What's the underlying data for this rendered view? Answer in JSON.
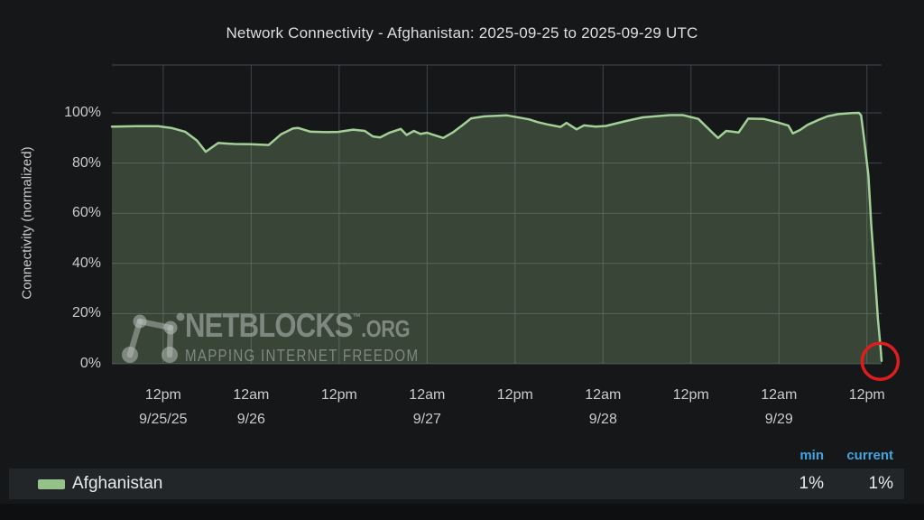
{
  "header": {
    "title": "Network Connectivity - Afghanistan: 2025-09-25 to 2025-09-29 UTC"
  },
  "watermark": {
    "brand": "NETBLOCKS",
    "tm": "™",
    "suffix": ".ORG",
    "tagline": "MAPPING INTERNET FREEDOM"
  },
  "legend": {
    "columns": {
      "min": "min",
      "current": "current"
    },
    "rows": [
      {
        "series": "Afghanistan",
        "swatch_color": "#94c289",
        "min": "1%",
        "current": "1%"
      }
    ]
  },
  "colors": {
    "background": "#151719",
    "grid": "#41464a",
    "title_text": "#dcdee1",
    "tick_text": "#c9ccce",
    "legend_header": "#42a5e0",
    "line": "#a2d096",
    "fill": "rgba(148,190,134,0.28)",
    "annotation": "#e01d1d",
    "watermark": "rgba(198,204,199,0.5)"
  },
  "chart_data": {
    "type": "area",
    "title": "Network Connectivity - Afghanistan: 2025-09-25 to 2025-09-29 UTC",
    "xlabel": "",
    "ylabel": "Connectivity (normalized)",
    "x_range_hours": [
      0,
      105
    ],
    "ylim": [
      0,
      119
    ],
    "grid": true,
    "legend_position": "bottom",
    "y_ticks": [
      {
        "v": 0,
        "label": "0%"
      },
      {
        "v": 20,
        "label": "20%"
      },
      {
        "v": 40,
        "label": "40%"
      },
      {
        "v": 60,
        "label": "60%"
      },
      {
        "v": 80,
        "label": "80%"
      },
      {
        "v": 100,
        "label": "100%"
      }
    ],
    "x_ticks": [
      {
        "t": 7,
        "time": "12pm",
        "date": "9/25/25"
      },
      {
        "t": 19,
        "time": "12am",
        "date": "9/26"
      },
      {
        "t": 31,
        "time": "12pm",
        "date": ""
      },
      {
        "t": 43,
        "time": "12am",
        "date": "9/27"
      },
      {
        "t": 55,
        "time": "12pm",
        "date": ""
      },
      {
        "t": 67,
        "time": "12am",
        "date": "9/28"
      },
      {
        "t": 79,
        "time": "12pm",
        "date": ""
      },
      {
        "t": 91,
        "time": "12am",
        "date": "9/29"
      },
      {
        "t": 103,
        "time": "12pm",
        "date": ""
      }
    ],
    "series": [
      {
        "name": "Afghanistan",
        "color": "#a2d096",
        "fill": "rgba(148,190,134,0.28)",
        "min": "1%",
        "current": "1%",
        "points": [
          [
            0,
            94.5
          ],
          [
            3.2,
            94.7
          ],
          [
            6.3,
            94.7
          ],
          [
            8.1,
            94
          ],
          [
            10,
            92.5
          ],
          [
            11.6,
            89
          ],
          [
            12.8,
            84.5
          ],
          [
            14.5,
            88
          ],
          [
            16.7,
            87.6
          ],
          [
            19,
            87.5
          ],
          [
            21.4,
            87.2
          ],
          [
            23.1,
            91.5
          ],
          [
            24.7,
            93.8
          ],
          [
            25.4,
            94
          ],
          [
            27.1,
            92.5
          ],
          [
            29.3,
            92.3
          ],
          [
            30.9,
            92.4
          ],
          [
            32.9,
            93.3
          ],
          [
            34.5,
            92.8
          ],
          [
            35.6,
            90.6
          ],
          [
            36.6,
            90.2
          ],
          [
            37.8,
            92
          ],
          [
            39.4,
            93.6
          ],
          [
            40.2,
            91.2
          ],
          [
            41.2,
            92.8
          ],
          [
            42.1,
            91.6
          ],
          [
            43,
            92.1
          ],
          [
            43.7,
            91.4
          ],
          [
            45.2,
            90
          ],
          [
            46.5,
            92.2
          ],
          [
            47.8,
            95
          ],
          [
            49,
            97.8
          ],
          [
            50.8,
            98.6
          ],
          [
            53.9,
            99
          ],
          [
            56.9,
            97.4
          ],
          [
            58.1,
            96.3
          ],
          [
            59.4,
            95.4
          ],
          [
            61.2,
            94.4
          ],
          [
            62,
            96
          ],
          [
            63.4,
            93.4
          ],
          [
            64.4,
            95
          ],
          [
            66,
            94.5
          ],
          [
            67.4,
            94.8
          ],
          [
            69.9,
            96.6
          ],
          [
            72.4,
            98.2
          ],
          [
            76.1,
            99.1
          ],
          [
            77.9,
            99.1
          ],
          [
            80,
            97.6
          ],
          [
            82.1,
            91.6
          ],
          [
            82.7,
            90
          ],
          [
            83.8,
            92.8
          ],
          [
            84.7,
            92.5
          ],
          [
            85.5,
            92.2
          ],
          [
            86.8,
            97.7
          ],
          [
            88.9,
            97.6
          ],
          [
            90.7,
            96.3
          ],
          [
            92.3,
            94.9
          ],
          [
            92.9,
            91.8
          ],
          [
            93.9,
            93.2
          ],
          [
            94.9,
            95.2
          ],
          [
            96.4,
            97.2
          ],
          [
            97.6,
            98.6
          ],
          [
            99.1,
            99.5
          ],
          [
            100.9,
            99.9
          ],
          [
            101.9,
            100
          ],
          [
            102.2,
            99
          ],
          [
            102.6,
            90
          ],
          [
            103.2,
            75
          ],
          [
            103.6,
            55
          ],
          [
            104.1,
            35
          ],
          [
            104.5,
            18
          ],
          [
            104.9,
            5
          ],
          [
            105,
            1.2
          ]
        ]
      }
    ],
    "annotations": [
      {
        "type": "circle",
        "t": 104.8,
        "v": 1,
        "radius_px": 20,
        "color": "#e01d1d"
      }
    ]
  }
}
